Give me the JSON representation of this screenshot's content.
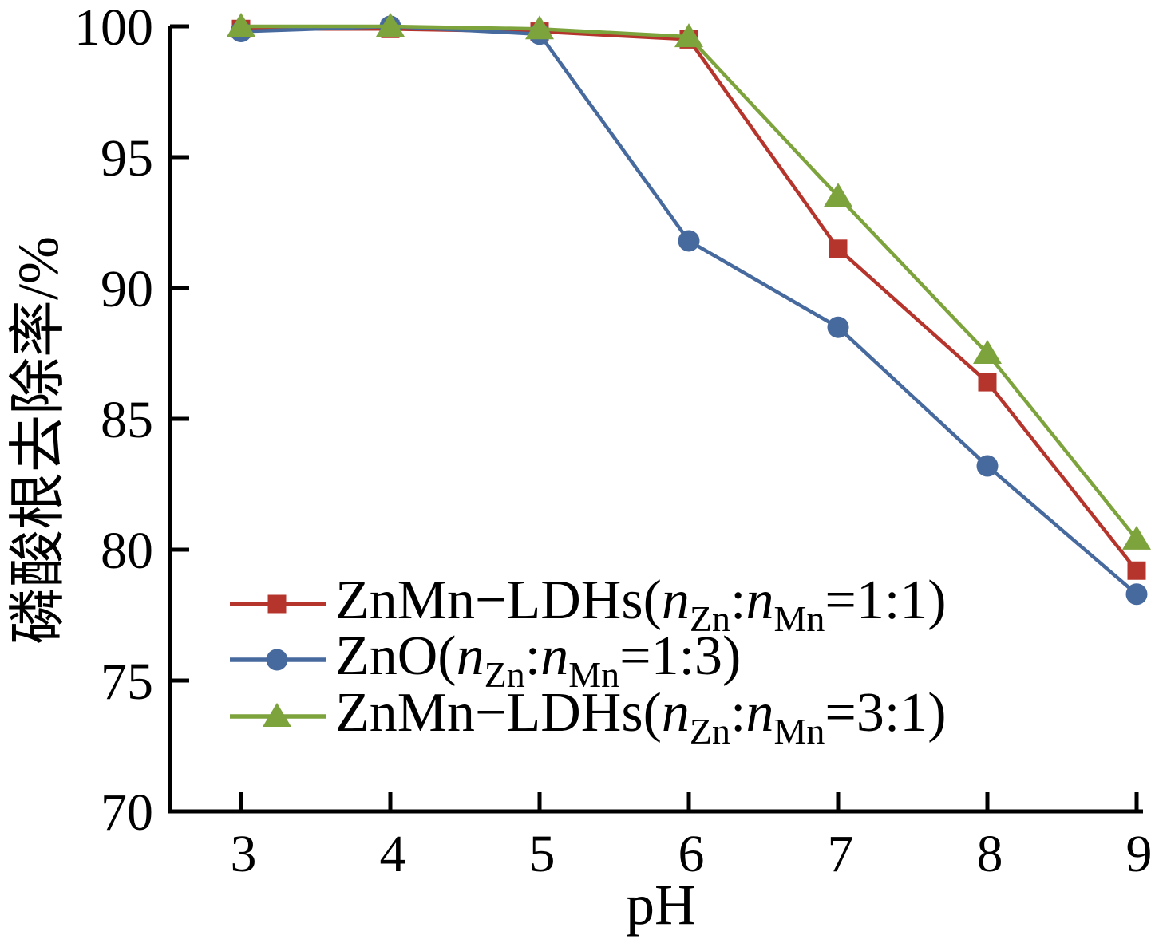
{
  "chart_data": {
    "type": "line",
    "title": "",
    "xlabel": "pH",
    "ylabel": "磷酸根去除率/%",
    "x": [
      3,
      4,
      5,
      6,
      7,
      8,
      9
    ],
    "xticks": [
      3,
      4,
      5,
      6,
      7,
      8,
      9
    ],
    "yticks": [
      70,
      75,
      80,
      85,
      90,
      95,
      100
    ],
    "ylim": [
      70,
      100
    ],
    "xlim": [
      2.5,
      9.05
    ],
    "grid": false,
    "legend_position": "lower-left",
    "axis_color": "#000000",
    "series": [
      {
        "name": "ZnMn−LDHs(nZn:nMn=1:1)",
        "color": "#b5342c",
        "marker": "square",
        "values": [
          99.9,
          99.9,
          99.8,
          99.5,
          91.5,
          86.4,
          79.2
        ],
        "label_segments": [
          {
            "text": "ZnMn−LDHs(",
            "style": "normal"
          },
          {
            "text": "n",
            "style": "italic"
          },
          {
            "text": "Zn",
            "style": "sub"
          },
          {
            "text": ":",
            "style": "normal"
          },
          {
            "text": "n",
            "style": "italic"
          },
          {
            "text": "Mn",
            "style": "sub"
          },
          {
            "text": "=1:1)",
            "style": "normal"
          }
        ]
      },
      {
        "name": "ZnO(nZn:nMn=1:3)",
        "color": "#46699e",
        "marker": "circle",
        "values": [
          99.8,
          100.0,
          99.7,
          91.8,
          88.5,
          83.2,
          78.3
        ],
        "label_segments": [
          {
            "text": "ZnO(",
            "style": "normal"
          },
          {
            "text": "n",
            "style": "italic"
          },
          {
            "text": "Zn",
            "style": "sub"
          },
          {
            "text": ":",
            "style": "normal"
          },
          {
            "text": "n",
            "style": "italic"
          },
          {
            "text": "Mn",
            "style": "sub"
          },
          {
            "text": "=1:3)",
            "style": "normal"
          }
        ]
      },
      {
        "name": "ZnMn−LDHs(nZn:nMn=3:1)",
        "color": "#7da33c",
        "marker": "triangle",
        "values": [
          100.0,
          100.0,
          99.9,
          99.6,
          93.5,
          87.5,
          80.4
        ],
        "label_segments": [
          {
            "text": "ZnMn−LDHs(",
            "style": "normal"
          },
          {
            "text": "n",
            "style": "italic"
          },
          {
            "text": "Zn",
            "style": "sub"
          },
          {
            "text": ":",
            "style": "normal"
          },
          {
            "text": "n",
            "style": "italic"
          },
          {
            "text": "Mn",
            "style": "sub"
          },
          {
            "text": "=3:1)",
            "style": "normal"
          }
        ]
      }
    ]
  }
}
